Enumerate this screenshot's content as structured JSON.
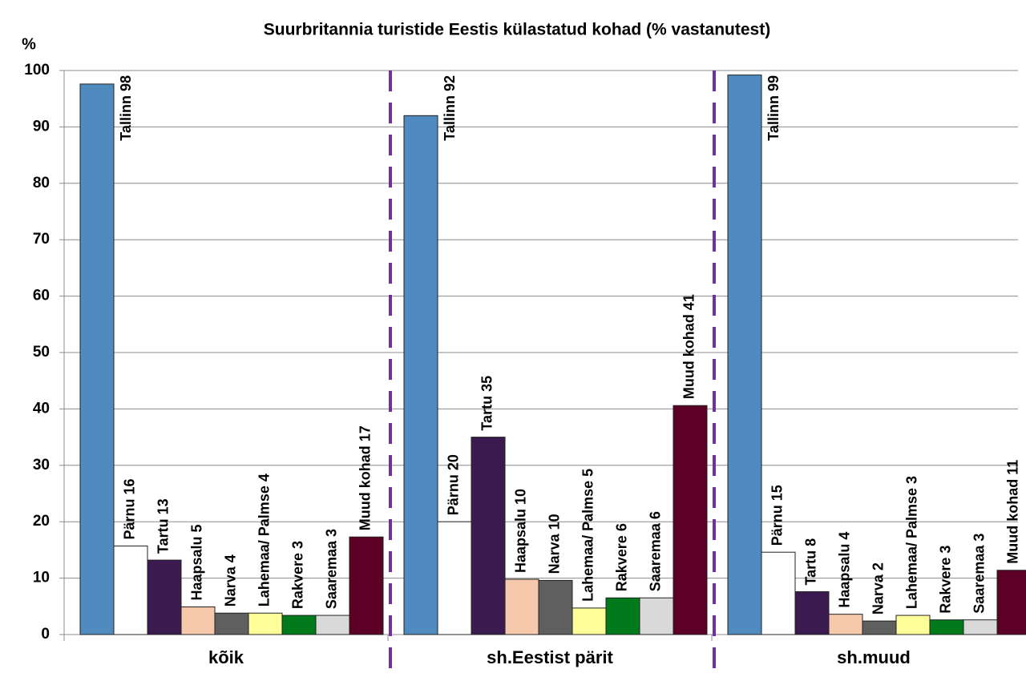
{
  "chart_data": {
    "type": "bar",
    "title": "Suurbritannia turistide Eestis külastatud kohad (% vastanutest)",
    "y_label": "%",
    "categories": [
      "kõik",
      "sh.Eestist pärit",
      "sh.muud"
    ],
    "ylim": [
      0,
      100
    ],
    "yticks": [
      0,
      10,
      20,
      30,
      40,
      50,
      60,
      70,
      80,
      90,
      100
    ],
    "grid": true,
    "series": [
      {
        "color": "#4f8bbf",
        "values": [
          97.6,
          92,
          99.2
        ],
        "value_labels": [
          "Tallinn 98",
          "Tallinn 92",
          "Tallinn 99"
        ]
      },
      {
        "color": "#ffffff",
        "values": [
          15.7,
          20,
          14.6
        ],
        "value_labels": [
          "Pärnu 16",
          "Pärnu 20",
          "Pärnu 15"
        ]
      },
      {
        "color": "#3b1a4f",
        "values": [
          13.2,
          35,
          7.6
        ],
        "value_labels": [
          "Tartu 13",
          "Tartu 35",
          "Tartu 8"
        ]
      },
      {
        "color": "#f6c9ad",
        "values": [
          4.9,
          9.8,
          3.6
        ],
        "value_labels": [
          "Haapsalu 5",
          "Haapsalu 10",
          "Haapsalu 4"
        ]
      },
      {
        "color": "#5f5f5f",
        "values": [
          3.8,
          9.6,
          2.4
        ],
        "value_labels": [
          "Narva 4",
          "Narva 10",
          "Narva 2"
        ]
      },
      {
        "color": "#ffff99",
        "values": [
          3.8,
          4.7,
          3.4
        ],
        "value_labels": [
          "Lahemaa/ Palmse 4",
          "Lahemaa/ Palmse 5",
          "Lahemaa/ Palmse 3"
        ]
      },
      {
        "color": "#007a1a",
        "values": [
          3.4,
          6.5,
          2.6
        ],
        "value_labels": [
          "Rakvere 3",
          "Rakvere 6",
          "Rakvere 3"
        ]
      },
      {
        "color": "#d9d9d9",
        "values": [
          3.4,
          6.5,
          2.6
        ],
        "value_labels": [
          "Saaremaa 3",
          "Saaremaa 6",
          "Saaremaa 3"
        ]
      },
      {
        "color": "#5c0026",
        "values": [
          17.3,
          40.6,
          11.4
        ],
        "value_labels": [
          "Muud kohad 17",
          "Muud kohad 41",
          "Muud kohad 11"
        ]
      }
    ]
  }
}
